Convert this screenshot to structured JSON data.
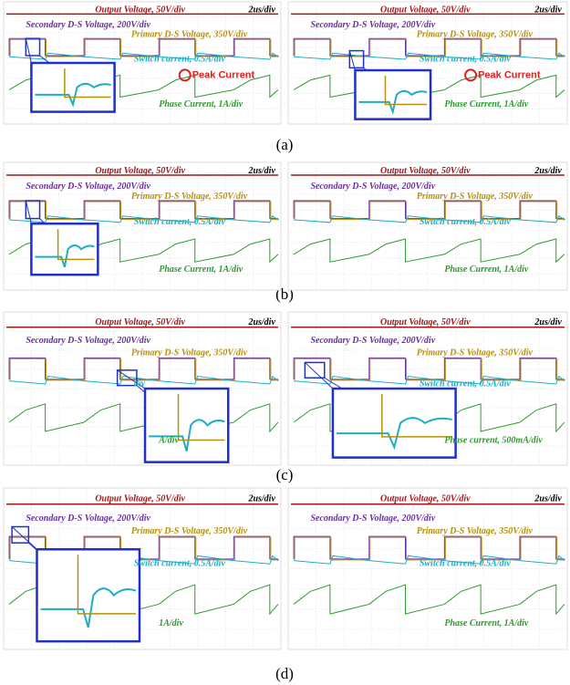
{
  "rows": [
    {
      "caption": "(a)",
      "panels": [
        {
          "output": "Output Voltage, 50V/div",
          "timebase": "2us/div",
          "secondary": "Secondary D-S Voltage, 200V/div",
          "primary": "Primary D-S Voltage, 350V/div",
          "switch": "Switch current, 0.5A/div",
          "peak": "Peak Current",
          "phase": "Phase Current, 1A/div"
        },
        {
          "output": "Output Voltage, 50V/div",
          "timebase": "2us/div",
          "secondary": "Secondary D-S Voltage, 200V/div",
          "primary": "Primary D-S Voltage, 350V/div",
          "switch": "Switch current, 0.5A/div",
          "peak": "Peak Current",
          "phase": "Phase Current, 1A/div"
        }
      ]
    },
    {
      "caption": "(b)",
      "panels": [
        {
          "output": "Output Voltage, 50V/div",
          "timebase": "2us/div",
          "secondary": "Secondary D-S Voltage, 200V/div",
          "primary": "Primary D-S Voltage, 350V/div",
          "switch": "Switch current, 0.5A/div",
          "phase": "Phase Current, 1A/div"
        },
        {
          "output": "Output Voltage, 50V/div",
          "timebase": "2us/div",
          "secondary": "Secondary D-S Voltage, 200V/div",
          "primary": "Primary D-S Voltage, 350V/div",
          "switch": "Switch current, 0.5A/div",
          "phase": "Phase Current, 1A/div"
        }
      ]
    },
    {
      "caption": "(c)",
      "panels": [
        {
          "output": "Output Voltage, 50V/div",
          "timebase": "2us/div",
          "secondary": "Secondary D-S Voltage, 200V/div",
          "primary": "Primary D-S Voltage, 350V/div",
          "switch": "div",
          "phase": "A/div"
        },
        {
          "output": "Output Voltage, 50V/div",
          "timebase": "2us/div",
          "secondary": "Secondary D-S Voltage, 200V/div",
          "primary": "Primary D-S Voltage, 350V/div",
          "switch": "Switch current, 0.5A/div",
          "phase": "Phase current, 500mA/div"
        }
      ]
    },
    {
      "caption": "(d)",
      "panels": [
        {
          "output": "Output Voltage, 50V/div",
          "timebase": "2us/div",
          "secondary": "Secondary D-S Voltage, 200V/div",
          "primary": "Primary D-S Voltage, 350V/div",
          "switch": "Switch current, 0.5A/div",
          "phase": "1A/div"
        },
        {
          "output": "Output Voltage, 50V/div",
          "timebase": "2us/div",
          "secondary": "Secondary D-S Voltage, 200V/div",
          "primary": "Primary D-S Voltage, 350V/div",
          "switch": "Switch current, 0.5A/div",
          "phase": "Phase Current, 1A/div"
        }
      ]
    }
  ]
}
